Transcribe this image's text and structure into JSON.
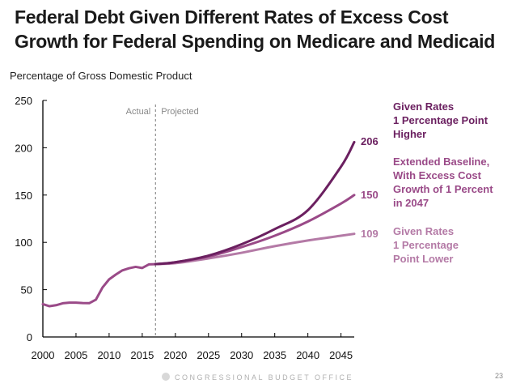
{
  "title": "Federal Debt Given Different Rates of Excess Cost Growth for Federal Spending on Medicare and Medicaid",
  "footer": "CONGRESSIONAL BUDGET OFFICE",
  "page_number": "23",
  "chart_data": {
    "type": "line",
    "title": "Federal Debt Given Different Rates of Excess Cost Growth for Federal Spending on Medicare and Medicaid",
    "ylabel": "Percentage of Gross Domestic Product",
    "xlabel": "",
    "ylim": [
      0,
      250
    ],
    "xlim": [
      2000,
      2047
    ],
    "yticks": [
      0,
      50,
      100,
      150,
      200,
      250
    ],
    "xticks": [
      2000,
      2005,
      2010,
      2015,
      2020,
      2025,
      2030,
      2035,
      2040,
      2045
    ],
    "grid": false,
    "divider": {
      "year": 2017,
      "left_label": "Actual",
      "right_label": "Projected"
    },
    "actual": {
      "x": [
        2000,
        2001,
        2002,
        2003,
        2004,
        2005,
        2006,
        2007,
        2008,
        2009,
        2010,
        2011,
        2012,
        2013,
        2014,
        2015,
        2016,
        2017
      ],
      "values": [
        34.7,
        32.5,
        33.6,
        35.6,
        36.3,
        36.3,
        35.9,
        35.7,
        39.4,
        52.3,
        60.9,
        65.9,
        70.4,
        72.6,
        74.1,
        72.9,
        76.7,
        77.0
      ],
      "color": "#9a4a88"
    },
    "series": [
      {
        "name": "Given Rates 1 Percentage Point Higher",
        "end_value": 206,
        "color": "#6b2060",
        "x": [
          2017,
          2020,
          2025,
          2030,
          2035,
          2040,
          2045,
          2047
        ],
        "values": [
          77,
          79,
          86,
          98,
          114,
          134,
          180,
          206
        ]
      },
      {
        "name": "Extended Baseline, With Excess Cost Growth of 1 Percent in 2047",
        "end_value": 150,
        "color": "#9a4a88",
        "x": [
          2017,
          2020,
          2025,
          2030,
          2035,
          2040,
          2045,
          2047
        ],
        "values": [
          77,
          79,
          85,
          95,
          107,
          122,
          141,
          150
        ]
      },
      {
        "name": "Given Rates 1 Percentage Point Lower",
        "end_value": 109,
        "color": "#b47aa6",
        "x": [
          2017,
          2020,
          2025,
          2030,
          2035,
          2040,
          2045,
          2047
        ],
        "values": [
          77,
          78,
          83,
          89,
          96,
          102,
          107,
          109
        ]
      }
    ],
    "legend": [
      {
        "lines": [
          "Given Rates",
          "1 Percentage Point",
          "Higher"
        ],
        "color": "#6b2060"
      },
      {
        "lines": [
          "Extended Baseline,",
          "With Excess Cost",
          "Growth of 1 Percent",
          "in 2047"
        ],
        "color": "#9a4a88"
      },
      {
        "lines": [
          "Given Rates",
          "1 Percentage",
          "Point Lower"
        ],
        "color": "#b47aa6"
      }
    ],
    "legend_placement": "right"
  }
}
